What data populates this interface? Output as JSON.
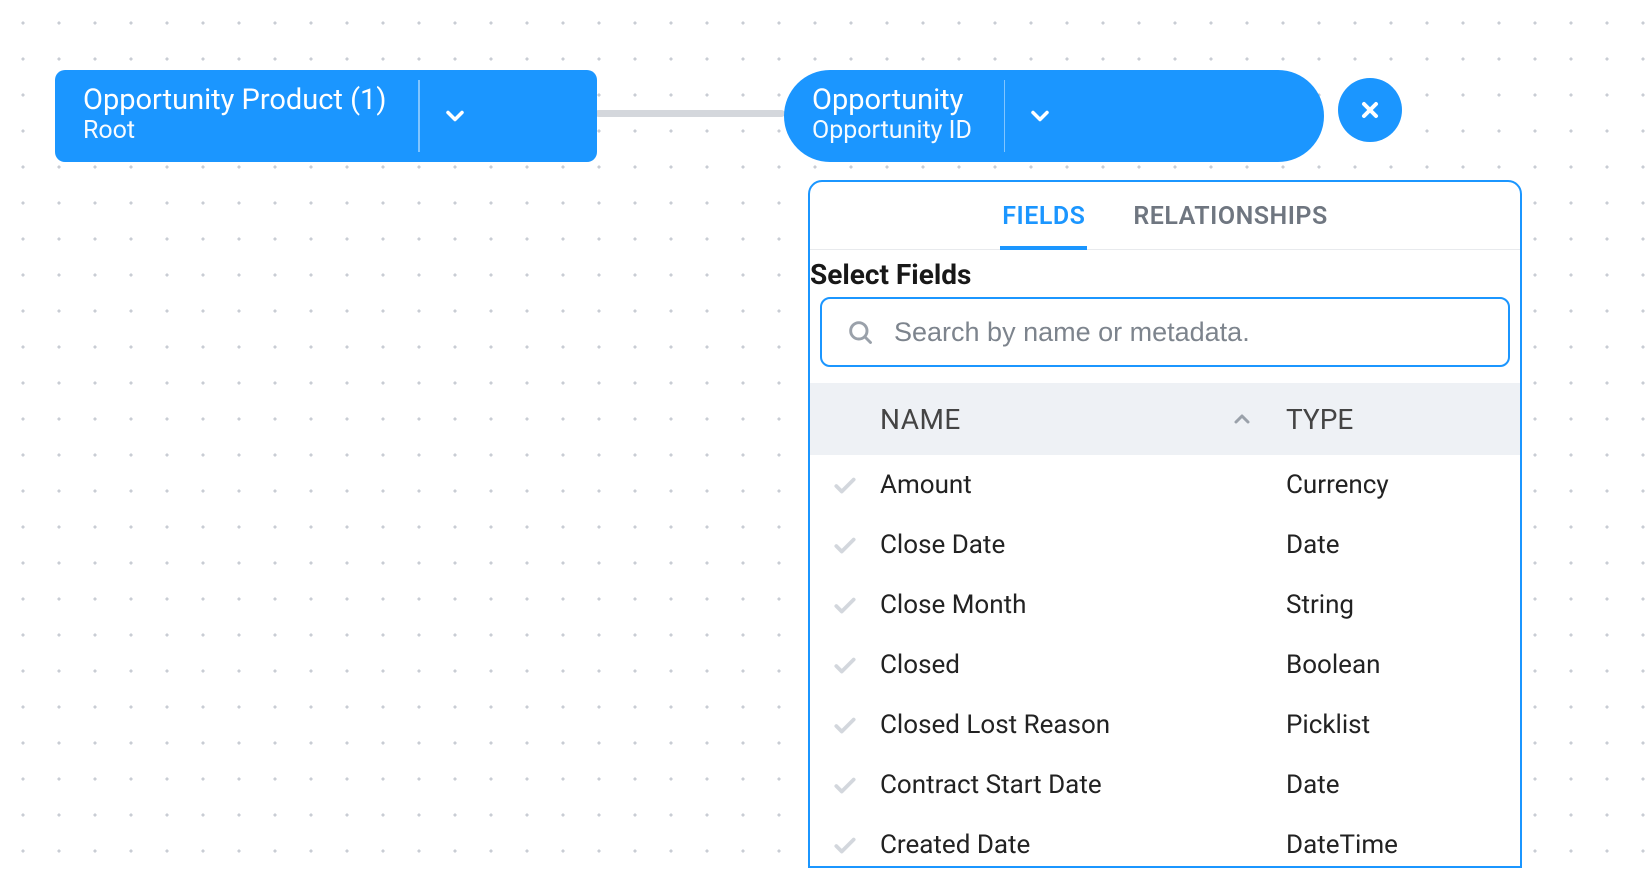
{
  "colors": {
    "accent": "#1b96ff",
    "dot": "#c9cdd4",
    "connector": "#d4d7dc",
    "panel_border": "#1b96ff",
    "tab_inactive": "#6f7680",
    "header_bg": "#eef1f5",
    "row_check": "#d3d7dd",
    "text": "#222222"
  },
  "nodes": {
    "root": {
      "title": "Opportunity Product (1)",
      "subtitle": "Root"
    },
    "child": {
      "title": "Opportunity",
      "subtitle": "Opportunity ID"
    }
  },
  "panel": {
    "tabs": {
      "fields": "FIELDS",
      "relationships": "RELATIONSHIPS",
      "active": "fields"
    },
    "section_label": "Select Fields",
    "search": {
      "placeholder": "Search by name or metadata."
    },
    "columns": {
      "name": "NAME",
      "type": "TYPE"
    },
    "rows": [
      {
        "name": "Amount",
        "type": "Currency"
      },
      {
        "name": "Close Date",
        "type": "Date"
      },
      {
        "name": "Close Month",
        "type": "String"
      },
      {
        "name": "Closed",
        "type": "Boolean"
      },
      {
        "name": "Closed Lost Reason",
        "type": "Picklist"
      },
      {
        "name": "Contract Start Date",
        "type": "Date"
      },
      {
        "name": "Created Date",
        "type": "DateTime"
      }
    ]
  }
}
